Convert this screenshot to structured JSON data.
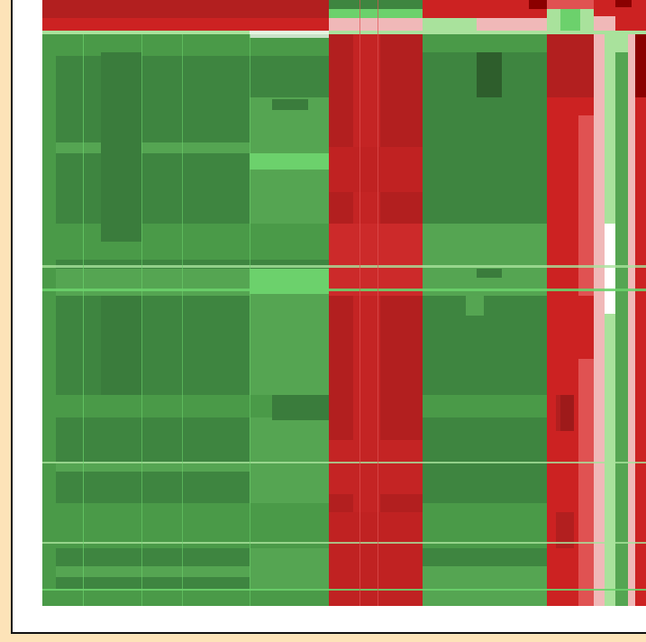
{
  "colors": {
    "page_background": "#fde3b8",
    "frame_border": "#111111",
    "frame_fill": "#ffffff",
    "green_dark": "#2e5e2c",
    "green": "#3e8540",
    "green_mid": "#55a552",
    "green_light": "#6cd16c",
    "green_pale": "#a9e29c",
    "pink_pale": "#f0b8b8",
    "red_light": "#e05252",
    "red": "#cc2222",
    "red_mid": "#b21f1f",
    "red_dark": "#8b0000"
  },
  "icon": "heatmap-matrix"
}
